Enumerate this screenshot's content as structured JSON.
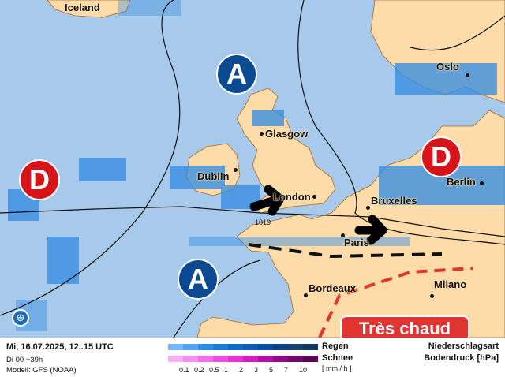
{
  "map": {
    "cities": [
      "Iceland",
      "Glasgow",
      "Dublin",
      "London",
      "Bruxelles",
      "Paris",
      "Berlin",
      "Oslo",
      "Bordeaux",
      "Milano"
    ],
    "isobar_label": "1019",
    "pressure_systems": [
      {
        "type": "A",
        "label": "A"
      },
      {
        "type": "A",
        "label": "A"
      },
      {
        "type": "D",
        "label": "D"
      },
      {
        "type": "D",
        "label": "D"
      }
    ],
    "warning_label": "Très chaud",
    "colors": {
      "sea": "#a7c9ea",
      "land": "#fddcaa",
      "high": "#0b4a93",
      "low": "#d8141b",
      "warning": "#e03530"
    },
    "icons": [
      "globe-icon"
    ]
  },
  "legend": {
    "date": "Mi, 16.07.2025, 12..15 UTC",
    "run": "Di 00 +39h",
    "model": "Modell: GFS (NOAA)",
    "rain_label": "Regen",
    "snow_label": "Schnee",
    "unit": "[ mm / h ]",
    "type_label": "Niederschlagsart",
    "pressure_label": "Bodendruck [hPa]",
    "ticks": [
      "0.1",
      "0.2",
      "0.5",
      "1",
      "2",
      "3",
      "5",
      "7",
      "10"
    ],
    "rain_colors": [
      "#72b8f6",
      "#52a3ee",
      "#2c8be2",
      "#1a7ad8",
      "#0c6acb",
      "#0a5cb6",
      "#084ea0",
      "#0a3f80",
      "#17406c",
      "#0f365c"
    ],
    "snow_colors": [
      "#fab0f4",
      "#f98df0",
      "#f56ee9",
      "#ef4fe0",
      "#e832d5",
      "#d51dc4",
      "#b60ea6",
      "#930a87",
      "#72066a",
      "#5a0554"
    ]
  }
}
